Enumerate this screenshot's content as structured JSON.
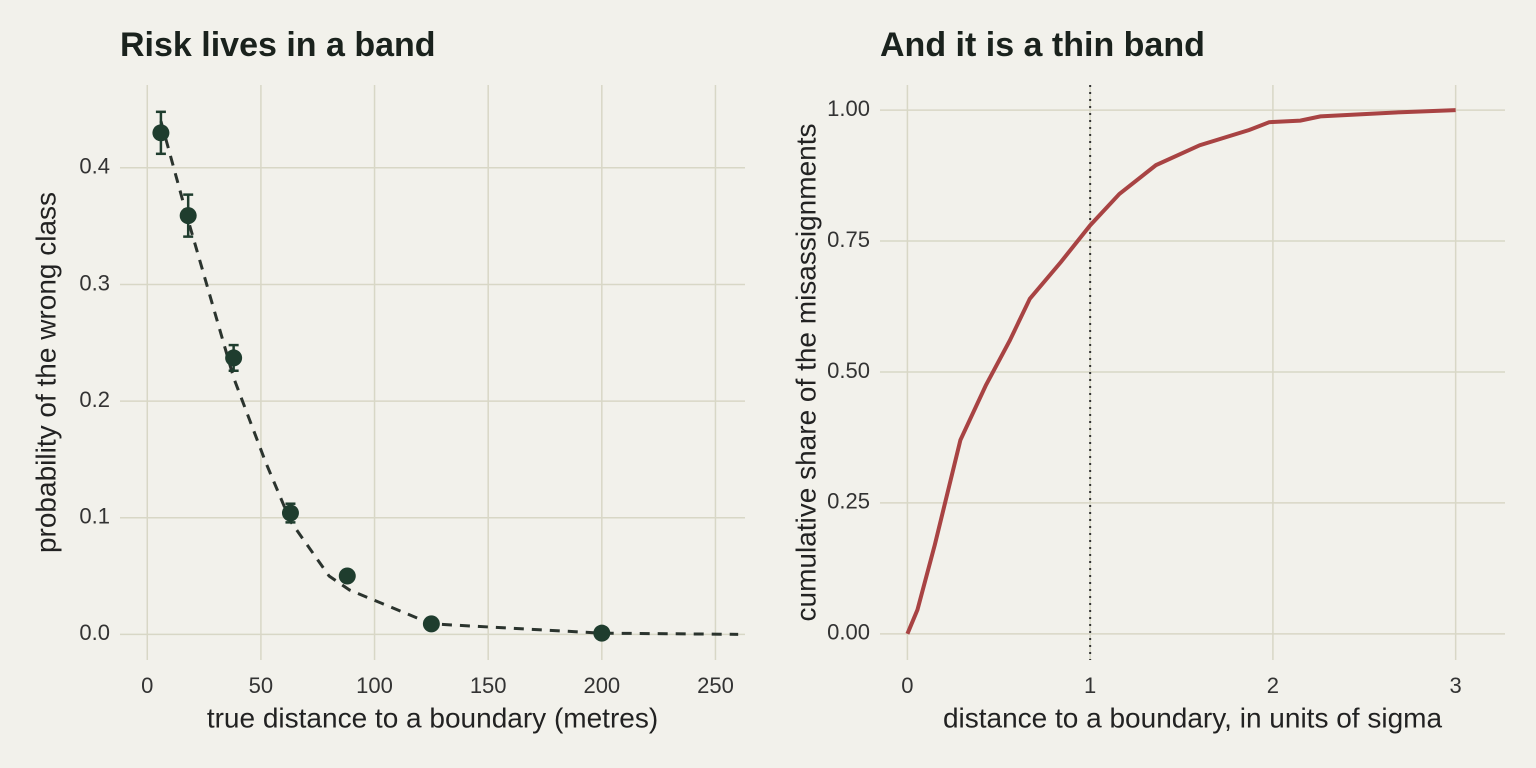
{
  "chart_data": [
    {
      "type": "scatter",
      "title": "Risk lives in a band",
      "x_label": "true distance to a boundary (metres)",
      "y_label": "probability of the wrong class",
      "x": [
        6,
        18,
        38,
        63,
        88,
        125,
        200
      ],
      "values": [
        0.43,
        0.359,
        0.237,
        0.104,
        0.05,
        0.009,
        0.001
      ],
      "errors": [
        0.018,
        0.018,
        0.011,
        0.008,
        0.004,
        0.002,
        0.001
      ],
      "color": "#1f3d2e",
      "fit": {
        "x": [
          6,
          18,
          38,
          52,
          63,
          80,
          89,
          125,
          200,
          260
        ],
        "values": [
          0.44,
          0.355,
          0.22,
          0.148,
          0.097,
          0.05,
          0.038,
          0.009,
          0.001,
          0
        ],
        "color": "#2b342e",
        "dashed": true
      },
      "xlim": [
        -12,
        263
      ],
      "ylim": [
        -0.022,
        0.471
      ],
      "xticks": [
        0,
        50,
        100,
        150,
        200,
        250
      ],
      "yticks": [
        {
          "value": 0,
          "label": "0.0"
        },
        0.1,
        0.2,
        0.3,
        0.4
      ],
      "grid": true
    },
    {
      "type": "line",
      "title": "And it is a thin band",
      "x_label": "distance to a boundary, in units of sigma",
      "y_label": "cumulative share of the misassignments",
      "x": [
        0,
        0.055,
        0.15,
        0.29,
        0.43,
        0.56,
        0.67,
        0.84,
        1,
        1.16,
        1.36,
        1.6,
        1.87,
        1.98,
        2.15,
        2.26,
        2.7,
        3
      ],
      "values": [
        0,
        0.046,
        0.17,
        0.37,
        0.475,
        0.56,
        0.64,
        0.71,
        0.78,
        0.84,
        0.895,
        0.933,
        0.962,
        0.977,
        0.98,
        0.988,
        0.996,
        1
      ],
      "color": "#a84343",
      "vline": 1,
      "xlim": [
        -0.15,
        3.27
      ],
      "ylim": [
        -0.05,
        1.048
      ],
      "xticks": [
        0,
        1,
        2,
        3
      ],
      "yticks": [
        {
          "value": 0,
          "label": "0.00"
        },
        {
          "value": 0.25,
          "label": "0.25"
        },
        {
          "value": 0.5,
          "label": "0.50"
        },
        {
          "value": 0.75,
          "label": "0.75"
        },
        {
          "value": 1,
          "label": "1.00"
        }
      ],
      "grid": true
    }
  ]
}
